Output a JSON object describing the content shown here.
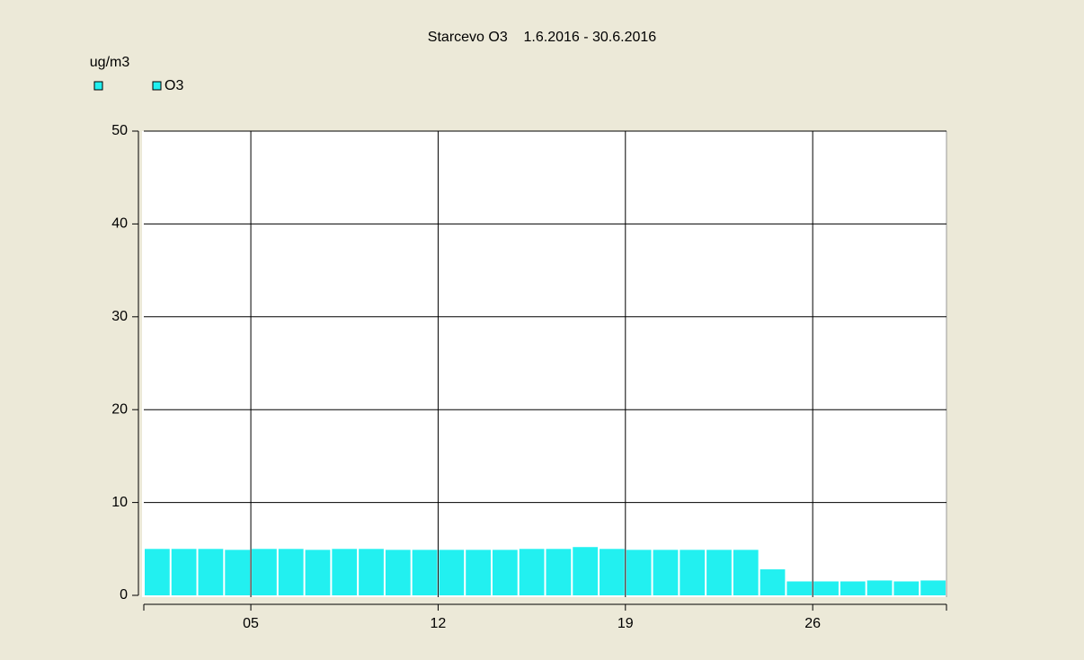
{
  "chart_data": {
    "type": "bar",
    "title": "Starcevo O3    1.6.2016 - 30.6.2016",
    "y_label": "ug/m3",
    "x": [
      1,
      2,
      3,
      4,
      5,
      6,
      7,
      8,
      9,
      10,
      11,
      12,
      13,
      14,
      15,
      16,
      17,
      18,
      19,
      20,
      21,
      22,
      23,
      24,
      25,
      26,
      27,
      28,
      29,
      30
    ],
    "series": [
      {
        "name": "O3",
        "color": "#22f0f0",
        "values": [
          5.0,
          5.0,
          5.0,
          4.9,
          5.0,
          5.0,
          4.9,
          5.0,
          5.0,
          4.9,
          4.9,
          4.9,
          4.9,
          4.9,
          5.0,
          5.0,
          5.2,
          5.0,
          4.9,
          4.9,
          4.9,
          4.9,
          4.9,
          2.8,
          1.5,
          1.5,
          1.5,
          1.6,
          1.5,
          1.6
        ]
      }
    ],
    "xlim": [
      1,
      31
    ],
    "xticks": [
      {
        "value": 5,
        "label": "05"
      },
      12,
      19,
      26
    ],
    "ylim": [
      0,
      50
    ],
    "yticks": [
      0,
      10,
      20,
      30,
      40,
      50
    ],
    "grid": true
  }
}
